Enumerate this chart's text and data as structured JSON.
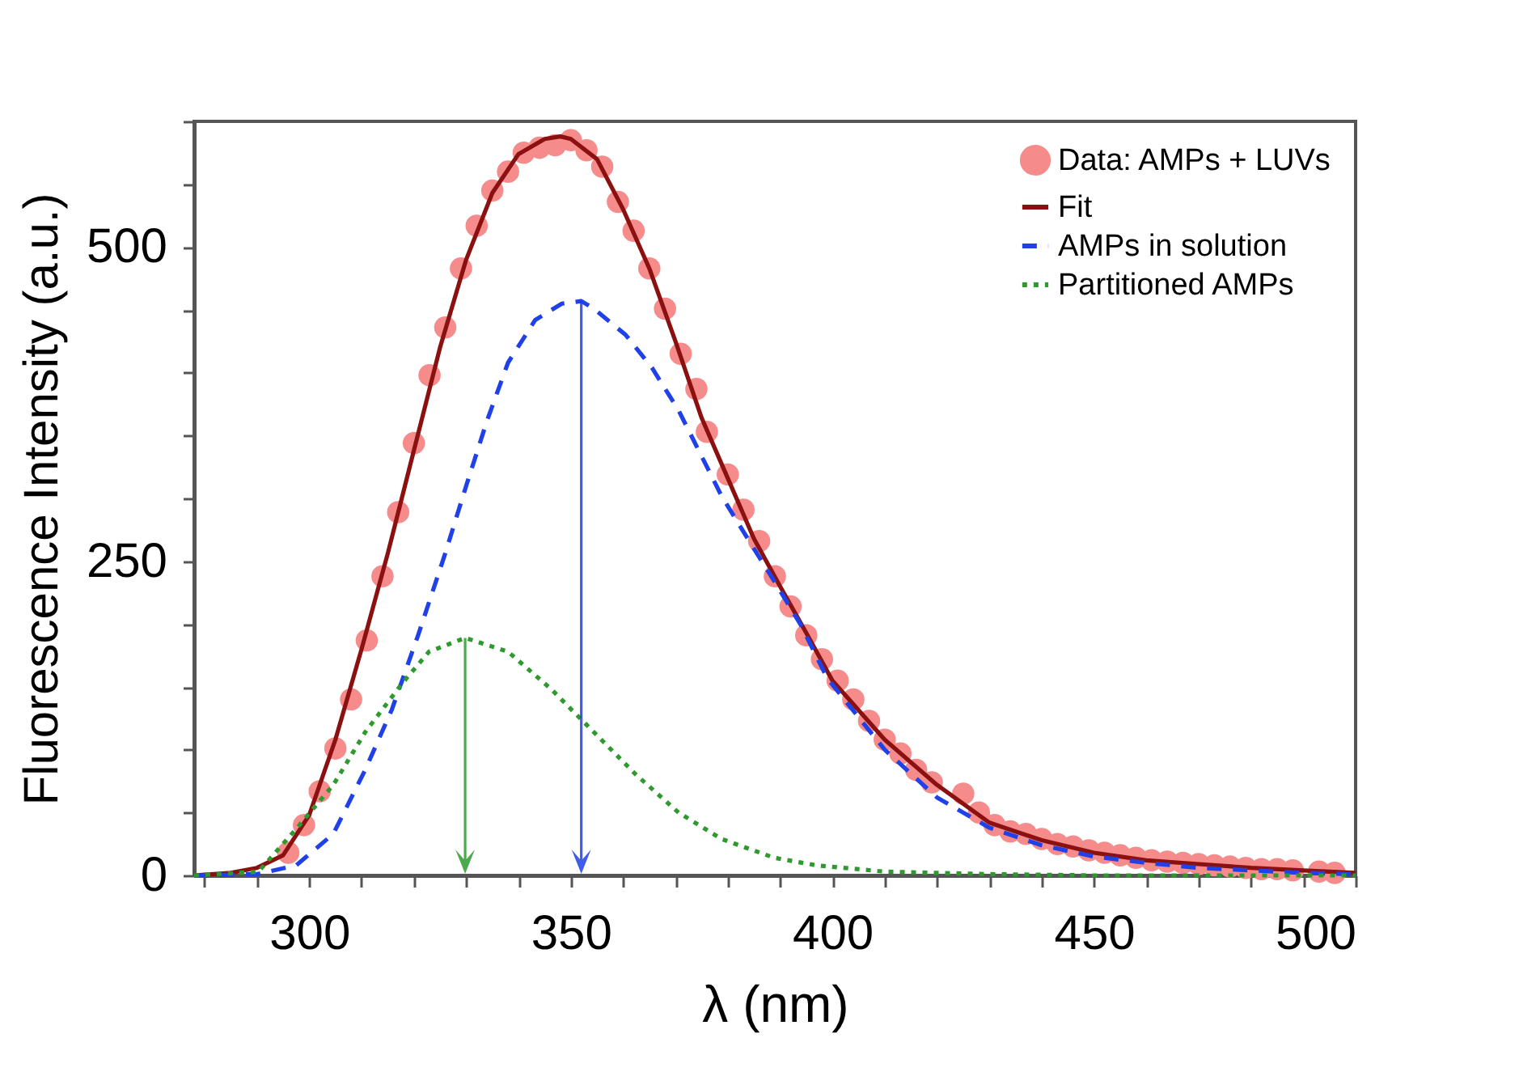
{
  "chart_data": {
    "type": "line",
    "xlabel": "λ (nm)",
    "ylabel": "Fluorescence Intensity (a.u.)",
    "xlim": [
      278,
      500
    ],
    "ylim": [
      0,
      600
    ],
    "xticks": [
      {
        "value": 280,
        "label": null
      },
      {
        "value": 290,
        "label": null
      },
      300,
      {
        "value": 310,
        "label": null
      },
      {
        "value": 320,
        "label": null
      },
      {
        "value": 330,
        "label": null
      },
      {
        "value": 340,
        "label": null
      },
      350,
      {
        "value": 360,
        "label": null
      },
      {
        "value": 370,
        "label": null
      },
      {
        "value": 380,
        "label": null
      },
      {
        "value": 390,
        "label": null
      },
      400,
      {
        "value": 410,
        "label": null
      },
      {
        "value": 420,
        "label": null
      },
      {
        "value": 430,
        "label": null
      },
      {
        "value": 440,
        "label": null
      },
      450,
      {
        "value": 460,
        "label": null
      },
      {
        "value": 470,
        "label": null
      },
      {
        "value": 480,
        "label": null
      },
      {
        "value": 490,
        "label": null
      },
      500
    ],
    "yticks": [
      0,
      {
        "value": 50,
        "label": null
      },
      {
        "value": 100,
        "label": null
      },
      {
        "value": 150,
        "label": null
      },
      {
        "value": 200,
        "label": null
      },
      250,
      {
        "value": 300,
        "label": null
      },
      {
        "value": 350,
        "label": null
      },
      {
        "value": 400,
        "label": null
      },
      {
        "value": 450,
        "label": null
      },
      500,
      {
        "value": 550,
        "label": null
      },
      {
        "value": 600,
        "label": null
      }
    ],
    "grid": false,
    "legend": "top right",
    "series": [
      {
        "name": "Data: AMPs + LUVs",
        "type": "scatter",
        "marker": "circle",
        "color": "#f58b8b",
        "x": [
          296,
          299,
          302,
          305,
          308,
          311,
          314,
          317,
          320,
          323,
          326,
          329,
          332,
          335,
          338,
          341,
          344,
          347,
          350,
          353,
          356,
          359,
          362,
          365,
          368,
          371,
          374,
          376,
          380,
          383,
          386,
          389,
          392,
          395,
          398,
          401,
          404,
          407,
          410,
          413,
          416,
          419,
          425,
          428,
          431,
          434,
          437,
          440,
          443,
          446,
          449,
          452,
          455,
          458,
          461,
          464,
          467,
          470,
          473,
          476,
          479,
          482,
          485,
          488,
          493,
          496
        ],
        "values": [
          18,
          40,
          67,
          101,
          140,
          187,
          238,
          289,
          344,
          398,
          436,
          483,
          517,
          545,
          560,
          575,
          579,
          581,
          585,
          577,
          564,
          536,
          513,
          483,
          451,
          415,
          387,
          353,
          319,
          291,
          266,
          238,
          214,
          191,
          172,
          155,
          140,
          123,
          108,
          97,
          84,
          74,
          65,
          50,
          40,
          35,
          33,
          29,
          25,
          23,
          20,
          18,
          16,
          14,
          12,
          11,
          10,
          9,
          8,
          7,
          6,
          5,
          5,
          4,
          3,
          2
        ]
      },
      {
        "name": "Fit",
        "line_style": "solid",
        "color": "#8b1010",
        "x": [
          278,
          285,
          290,
          295,
          300,
          305,
          310,
          315,
          320,
          325,
          330,
          335,
          340,
          345,
          348,
          350,
          355,
          360,
          365,
          370,
          375,
          380,
          385,
          390,
          395,
          400,
          410,
          420,
          430,
          440,
          450,
          460,
          470,
          480,
          490,
          500
        ],
        "values": [
          0,
          2,
          6,
          16,
          48,
          108,
          180,
          256,
          338,
          420,
          490,
          543,
          574,
          586,
          588,
          586,
          570,
          530,
          483,
          425,
          364,
          316,
          268,
          230,
          193,
          155,
          108,
          72,
          42,
          28,
          18,
          12,
          9,
          6,
          4,
          2
        ]
      },
      {
        "name": "AMPs in solution",
        "line_style": "dashed",
        "color": "#2040e8",
        "x": [
          278,
          290,
          297.5,
          304.6,
          310.7,
          315.8,
          320.8,
          325.9,
          330,
          334,
          338,
          343.2,
          348.3,
          352,
          354.4,
          360.5,
          365.5,
          370.6,
          374.7,
          378.8,
          383.8,
          388.9,
          394,
          399,
          410,
          420,
          430,
          440,
          450,
          460,
          470,
          480,
          490,
          500
        ],
        "values": [
          0,
          1,
          8,
          33,
          84,
          132,
          191,
          255,
          310,
          362,
          408,
          442,
          455,
          457,
          451,
          430,
          404,
          370,
          336,
          302,
          268,
          234,
          199,
          157,
          100,
          62,
          38,
          24,
          15,
          10,
          6,
          4,
          2,
          1
        ]
      },
      {
        "name": "Partitioned AMPs",
        "line_style": "dotted",
        "color": "#2e9a2e",
        "x": [
          278,
          290.3,
          297.5,
          304.6,
          310.7,
          317.8,
          322.9,
          329.8,
          338,
          346.3,
          354.4,
          362.5,
          370.6,
          378.8,
          388.9,
          397,
          410,
          430,
          450,
          500
        ],
        "values": [
          0,
          3,
          37,
          72,
          114,
          153,
          178,
          189,
          178,
          148,
          114,
          80,
          50,
          29,
          14,
          8,
          3,
          1,
          0,
          0
        ]
      }
    ]
  }
}
